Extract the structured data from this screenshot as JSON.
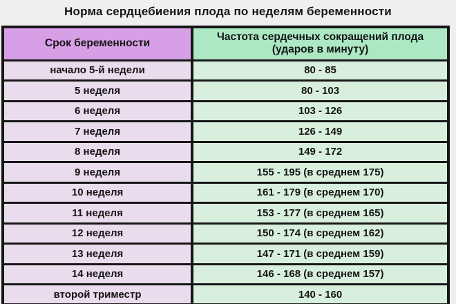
{
  "title": "Норма сердцебиения плода по неделям беременности",
  "colors": {
    "page_bg": "#f1eef1",
    "header_term_bg": "#d79fe6",
    "header_rate_bg": "#abe8c3",
    "row_term_bg": "#e9dcec",
    "row_rate_bg": "#d9efde",
    "border": "#161616",
    "text": "#141414"
  },
  "chart_data": {
    "type": "table",
    "title": "Норма сердцебиения плода по неделям беременности",
    "columns": {
      "term": "Срок беременности",
      "rate": "Частота сердечных сокращений плода (ударов в минуту)"
    },
    "rows": [
      {
        "term": "начало 5-й недели",
        "rate": "80 - 85"
      },
      {
        "term": "5 неделя",
        "rate": "80 - 103"
      },
      {
        "term": "6 неделя",
        "rate": "103 - 126"
      },
      {
        "term": "7 неделя",
        "rate": "126 - 149"
      },
      {
        "term": "8 неделя",
        "rate": "149 - 172"
      },
      {
        "term": "9 неделя",
        "rate": "155 - 195 (в среднем 175)"
      },
      {
        "term": "10 неделя",
        "rate": "161 - 179 (в среднем 170)"
      },
      {
        "term": "11 неделя",
        "rate": "153 - 177 (в среднем 165)"
      },
      {
        "term": "12 неделя",
        "rate": "150 - 174 (в среднем 162)"
      },
      {
        "term": "13 неделя",
        "rate": "147 - 171 (в среднем 159)"
      },
      {
        "term": "14 неделя",
        "rate": "146 - 168 (в среднем 157)"
      },
      {
        "term": "второй триместр",
        "rate": "140 - 160"
      }
    ]
  }
}
